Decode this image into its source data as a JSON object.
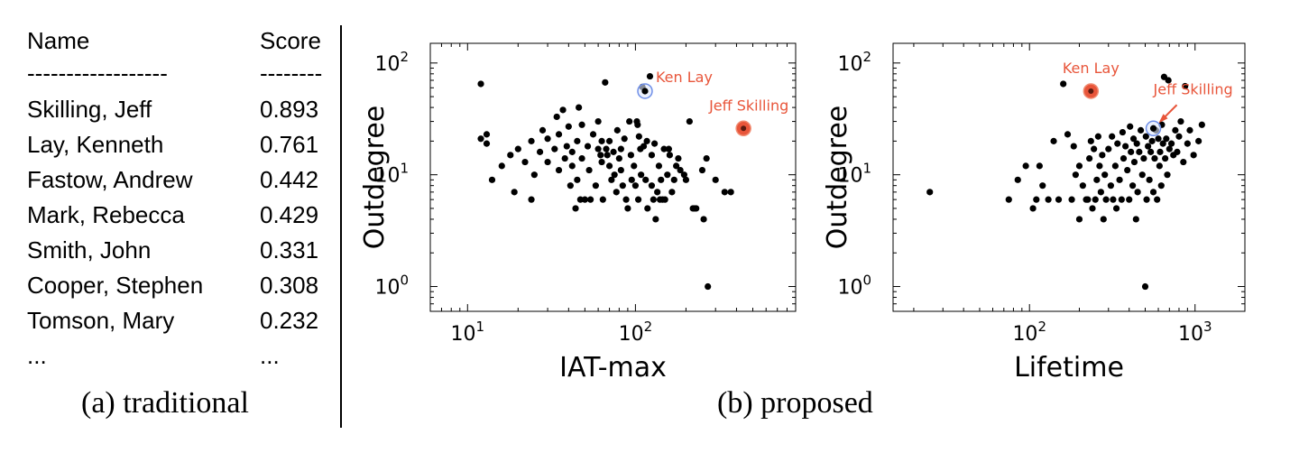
{
  "table": {
    "headers": {
      "name": "Name",
      "score": "Score"
    },
    "separators": {
      "name": "------------------",
      "score": "--------"
    },
    "rows": [
      {
        "name": "Skilling, Jeff",
        "score": "0.893"
      },
      {
        "name": "Lay, Kenneth",
        "score": "0.761"
      },
      {
        "name": "Fastow, Andrew",
        "score": "0.442"
      },
      {
        "name": "Mark, Rebecca",
        "score": "0.429"
      },
      {
        "name": "Smith, John",
        "score": "0.331"
      },
      {
        "name": "Cooper, Stephen",
        "score": "0.308"
      },
      {
        "name": "Tomson, Mary",
        "score": "0.232"
      },
      {
        "name": "...",
        "score": "..."
      }
    ]
  },
  "captions": {
    "left": "(a) traditional",
    "right": "(b) proposed"
  },
  "colors": {
    "dot": "#000000",
    "highlight_fill": "#e8553a",
    "highlight_edge": "#f08a70",
    "ring_blue": "#6f8fe8",
    "ring_fill": "#dfe7fb",
    "annotation": "#e8553a",
    "axis": "#000000"
  },
  "chart_data": [
    {
      "type": "scatter",
      "xscale": "log",
      "yscale": "log",
      "xlabel": "IAT-max",
      "ylabel": "Outdegree",
      "xlim": [
        6,
        900
      ],
      "ylim": [
        0.6,
        150
      ],
      "xticks": [
        {
          "value": 10,
          "base": "10",
          "exp": "1"
        },
        {
          "value": 100,
          "base": "10",
          "exp": "2"
        }
      ],
      "yticks": [
        {
          "value": 1,
          "base": "10",
          "exp": "0"
        },
        {
          "value": 10,
          "base": "10",
          "exp": "1"
        },
        {
          "value": 100,
          "base": "10",
          "exp": "2"
        }
      ],
      "points": [
        [
          12,
          65
        ],
        [
          12,
          21
        ],
        [
          13,
          23
        ],
        [
          13,
          19
        ],
        [
          14,
          9
        ],
        [
          16,
          12
        ],
        [
          18,
          15
        ],
        [
          19,
          7
        ],
        [
          20,
          17
        ],
        [
          22,
          13
        ],
        [
          24,
          6
        ],
        [
          24,
          20
        ],
        [
          25,
          10
        ],
        [
          27,
          16
        ],
        [
          28,
          25
        ],
        [
          30,
          13
        ],
        [
          30,
          21
        ],
        [
          33,
          17
        ],
        [
          34,
          33
        ],
        [
          35,
          11
        ],
        [
          35,
          23
        ],
        [
          37,
          38
        ],
        [
          38,
          14
        ],
        [
          39,
          18
        ],
        [
          40,
          27
        ],
        [
          41,
          8
        ],
        [
          42,
          16
        ],
        [
          42,
          12
        ],
        [
          44,
          5
        ],
        [
          45,
          9
        ],
        [
          45,
          20
        ],
        [
          46,
          40
        ],
        [
          47,
          6
        ],
        [
          48,
          14
        ],
        [
          48,
          28
        ],
        [
          50,
          6
        ],
        [
          52,
          18
        ],
        [
          53,
          11
        ],
        [
          54,
          6
        ],
        [
          56,
          23
        ],
        [
          58,
          8
        ],
        [
          60,
          17
        ],
        [
          60,
          30
        ],
        [
          62,
          15
        ],
        [
          63,
          13
        ],
        [
          63,
          20
        ],
        [
          64,
          6
        ],
        [
          66,
          67
        ],
        [
          67,
          17
        ],
        [
          68,
          15
        ],
        [
          70,
          12
        ],
        [
          70,
          20
        ],
        [
          72,
          9
        ],
        [
          74,
          16
        ],
        [
          75,
          10
        ],
        [
          77,
          7
        ],
        [
          78,
          25
        ],
        [
          80,
          14
        ],
        [
          82,
          17
        ],
        [
          82,
          11
        ],
        [
          84,
          8
        ],
        [
          86,
          21
        ],
        [
          88,
          6
        ],
        [
          90,
          5
        ],
        [
          92,
          30
        ],
        [
          94,
          15
        ],
        [
          95,
          9
        ],
        [
          98,
          12
        ],
        [
          100,
          8
        ],
        [
          102,
          30
        ],
        [
          103,
          28
        ],
        [
          104,
          6
        ],
        [
          105,
          22
        ],
        [
          107,
          17
        ],
        [
          108,
          10
        ],
        [
          110,
          61
        ],
        [
          112,
          18
        ],
        [
          115,
          9
        ],
        [
          117,
          20
        ],
        [
          118,
          5
        ],
        [
          122,
          76
        ],
        [
          125,
          8
        ],
        [
          125,
          15
        ],
        [
          128,
          6
        ],
        [
          130,
          19
        ],
        [
          132,
          4
        ],
        [
          135,
          7
        ],
        [
          138,
          12
        ],
        [
          140,
          6
        ],
        [
          142,
          9
        ],
        [
          145,
          6
        ],
        [
          148,
          17
        ],
        [
          150,
          6
        ],
        [
          155,
          10
        ],
        [
          158,
          17
        ],
        [
          160,
          15
        ],
        [
          165,
          7
        ],
        [
          170,
          9
        ],
        [
          175,
          12
        ],
        [
          180,
          14
        ],
        [
          185,
          11
        ],
        [
          195,
          10
        ],
        [
          200,
          9
        ],
        [
          210,
          30
        ],
        [
          220,
          5
        ],
        [
          225,
          5
        ],
        [
          230,
          5
        ],
        [
          250,
          11
        ],
        [
          255,
          4
        ],
        [
          265,
          14
        ],
        [
          270,
          1
        ],
        [
          300,
          9
        ],
        [
          340,
          7
        ],
        [
          370,
          7
        ]
      ],
      "highlights": [
        {
          "label": "Ken Lay",
          "x": 114,
          "y": 56,
          "style": "ring",
          "label_dx": 12,
          "label_dy": -10,
          "anchor": "start"
        },
        {
          "label": "Jeff Skilling",
          "x": 440,
          "y": 26,
          "style": "filled",
          "label_dx": 6,
          "label_dy": -20,
          "anchor": "middle"
        }
      ]
    },
    {
      "type": "scatter",
      "xscale": "log",
      "yscale": "log",
      "xlabel": "Lifetime",
      "ylabel": "Outdegree",
      "xlim": [
        15,
        2000
      ],
      "ylim": [
        0.6,
        150
      ],
      "xticks": [
        {
          "value": 100,
          "base": "10",
          "exp": "2"
        },
        {
          "value": 1000,
          "base": "10",
          "exp": "3"
        }
      ],
      "yticks": [
        {
          "value": 1,
          "base": "10",
          "exp": "0"
        },
        {
          "value": 10,
          "base": "10",
          "exp": "1"
        },
        {
          "value": 100,
          "base": "10",
          "exp": "2"
        }
      ],
      "points": [
        [
          25,
          7
        ],
        [
          75,
          6
        ],
        [
          85,
          9
        ],
        [
          95,
          12
        ],
        [
          105,
          5
        ],
        [
          110,
          6
        ],
        [
          115,
          12
        ],
        [
          120,
          8
        ],
        [
          130,
          6
        ],
        [
          140,
          20
        ],
        [
          150,
          6
        ],
        [
          160,
          65
        ],
        [
          170,
          23
        ],
        [
          180,
          6
        ],
        [
          185,
          18
        ],
        [
          190,
          10
        ],
        [
          200,
          12
        ],
        [
          200,
          4
        ],
        [
          210,
          8
        ],
        [
          220,
          6
        ],
        [
          225,
          6
        ],
        [
          230,
          14
        ],
        [
          235,
          20
        ],
        [
          240,
          5
        ],
        [
          245,
          17
        ],
        [
          250,
          6
        ],
        [
          255,
          9
        ],
        [
          260,
          22
        ],
        [
          265,
          12
        ],
        [
          270,
          7
        ],
        [
          275,
          15
        ],
        [
          280,
          4
        ],
        [
          285,
          10
        ],
        [
          290,
          6
        ],
        [
          300,
          17
        ],
        [
          310,
          8
        ],
        [
          315,
          22
        ],
        [
          320,
          6
        ],
        [
          330,
          12
        ],
        [
          335,
          5
        ],
        [
          340,
          19
        ],
        [
          350,
          9
        ],
        [
          360,
          6
        ],
        [
          365,
          24
        ],
        [
          370,
          14
        ],
        [
          380,
          18
        ],
        [
          390,
          11
        ],
        [
          400,
          6
        ],
        [
          405,
          27
        ],
        [
          410,
          16
        ],
        [
          420,
          8
        ],
        [
          425,
          21
        ],
        [
          430,
          13
        ],
        [
          440,
          4
        ],
        [
          445,
          19
        ],
        [
          450,
          7
        ],
        [
          460,
          16
        ],
        [
          470,
          25
        ],
        [
          480,
          10
        ],
        [
          490,
          14
        ],
        [
          500,
          1
        ],
        [
          505,
          22
        ],
        [
          510,
          6
        ],
        [
          520,
          18
        ],
        [
          530,
          9
        ],
        [
          540,
          16
        ],
        [
          550,
          20
        ],
        [
          560,
          7
        ],
        [
          570,
          14
        ],
        [
          580,
          25
        ],
        [
          590,
          6
        ],
        [
          600,
          21
        ],
        [
          610,
          12
        ],
        [
          615,
          16
        ],
        [
          625,
          8
        ],
        [
          630,
          28
        ],
        [
          640,
          19
        ],
        [
          650,
          75
        ],
        [
          660,
          14
        ],
        [
          670,
          21
        ],
        [
          680,
          10
        ],
        [
          690,
          70
        ],
        [
          700,
          17
        ],
        [
          720,
          19
        ],
        [
          740,
          15
        ],
        [
          760,
          25
        ],
        [
          780,
          16
        ],
        [
          800,
          22
        ],
        [
          820,
          30
        ],
        [
          850,
          13
        ],
        [
          870,
          62
        ],
        [
          900,
          19
        ],
        [
          930,
          25
        ],
        [
          980,
          15
        ],
        [
          1050,
          20
        ],
        [
          1100,
          28
        ]
      ],
      "highlights": [
        {
          "label": "Ken Lay",
          "x": 235,
          "y": 56,
          "style": "filled",
          "label_dx": 0,
          "label_dy": -20,
          "anchor": "middle"
        },
        {
          "label": "Jeff Skilling",
          "x": 560,
          "y": 26,
          "style": "ring",
          "label_dx": 0,
          "label_dy": -38,
          "anchor": "start",
          "arrow": true
        }
      ]
    }
  ]
}
